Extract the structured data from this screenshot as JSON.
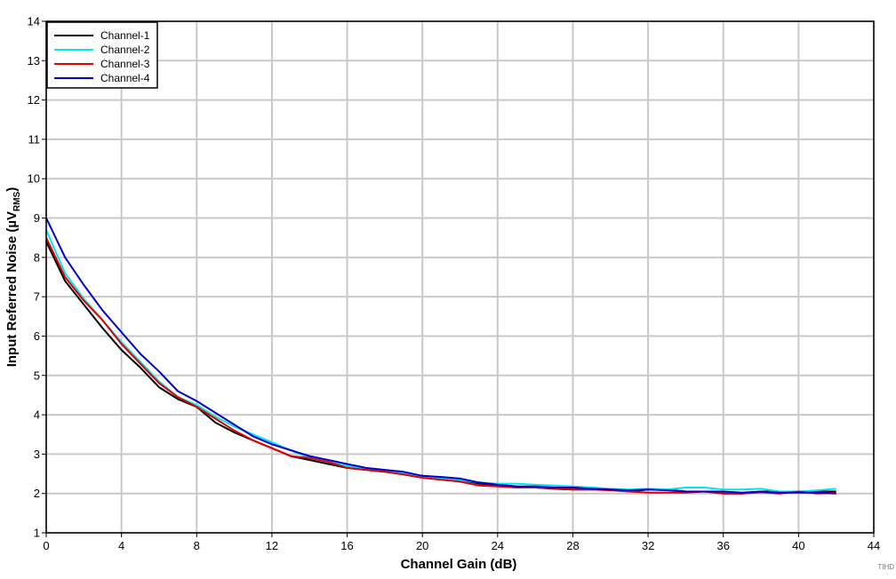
{
  "chart_data": {
    "type": "line",
    "title": "",
    "xlabel": "Channel Gain (dB)",
    "ylabel": "Input Referred Noise (µV",
    "ylabel_sub": "RMS",
    "ylabel_end": ")",
    "xlim": [
      0,
      44
    ],
    "ylim": [
      1,
      14
    ],
    "xticks": [
      0,
      4,
      8,
      12,
      16,
      20,
      24,
      28,
      32,
      36,
      40,
      44
    ],
    "yticks": [
      1,
      2,
      3,
      4,
      5,
      6,
      7,
      8,
      9,
      10,
      11,
      12,
      13,
      14
    ],
    "grid": true,
    "legend_position": "top-left",
    "figure_id": "TIHD",
    "x": [
      0,
      1,
      2,
      3,
      4,
      5,
      6,
      7,
      8,
      9,
      10,
      11,
      12,
      13,
      14,
      15,
      16,
      17,
      18,
      19,
      20,
      21,
      22,
      23,
      24,
      25,
      26,
      27,
      28,
      29,
      30,
      31,
      32,
      33,
      34,
      35,
      36,
      37,
      38,
      39,
      40,
      41,
      42
    ],
    "series": [
      {
        "name": "Channel-1",
        "color": "#000000",
        "values": [
          8.4,
          7.4,
          6.8,
          6.2,
          5.65,
          5.2,
          4.7,
          4.4,
          4.2,
          3.8,
          3.55,
          3.35,
          3.15,
          2.95,
          2.85,
          2.75,
          2.65,
          2.6,
          2.55,
          2.5,
          2.45,
          2.4,
          2.35,
          2.25,
          2.22,
          2.18,
          2.15,
          2.12,
          2.1,
          2.1,
          2.1,
          2.05,
          2.1,
          2.1,
          2.05,
          2.05,
          2.0,
          2.0,
          2.05,
          2.05,
          2.05,
          2.05,
          2.05
        ]
      },
      {
        "name": "Channel-2",
        "color": "#00e5ee",
        "values": [
          8.7,
          7.6,
          6.95,
          6.4,
          5.85,
          5.35,
          4.85,
          4.45,
          4.25,
          3.95,
          3.7,
          3.5,
          3.3,
          3.1,
          2.9,
          2.8,
          2.7,
          2.65,
          2.55,
          2.5,
          2.45,
          2.4,
          2.35,
          2.28,
          2.25,
          2.25,
          2.22,
          2.2,
          2.18,
          2.15,
          2.12,
          2.1,
          2.12,
          2.1,
          2.15,
          2.15,
          2.1,
          2.1,
          2.12,
          2.05,
          2.05,
          2.08,
          2.12
        ]
      },
      {
        "name": "Channel-3",
        "color": "#e00000",
        "values": [
          8.5,
          7.5,
          6.9,
          6.4,
          5.8,
          5.3,
          4.8,
          4.45,
          4.2,
          3.9,
          3.6,
          3.35,
          3.15,
          2.95,
          2.9,
          2.8,
          2.65,
          2.6,
          2.55,
          2.48,
          2.4,
          2.35,
          2.3,
          2.2,
          2.18,
          2.15,
          2.15,
          2.13,
          2.1,
          2.1,
          2.08,
          2.05,
          2.02,
          2.02,
          2.02,
          2.05,
          2.0,
          2.0,
          2.03,
          2.0,
          2.05,
          2.0,
          2.02
        ]
      },
      {
        "name": "Channel-4",
        "color": "#0000cc",
        "values": [
          9.0,
          8.0,
          7.3,
          6.65,
          6.1,
          5.55,
          5.1,
          4.6,
          4.35,
          4.05,
          3.75,
          3.45,
          3.25,
          3.1,
          2.95,
          2.85,
          2.75,
          2.65,
          2.6,
          2.55,
          2.45,
          2.42,
          2.38,
          2.28,
          2.22,
          2.18,
          2.18,
          2.15,
          2.15,
          2.12,
          2.1,
          2.08,
          2.1,
          2.08,
          2.05,
          2.05,
          2.05,
          2.02,
          2.05,
          2.02,
          2.02,
          2.02,
          2.0
        ]
      }
    ]
  }
}
